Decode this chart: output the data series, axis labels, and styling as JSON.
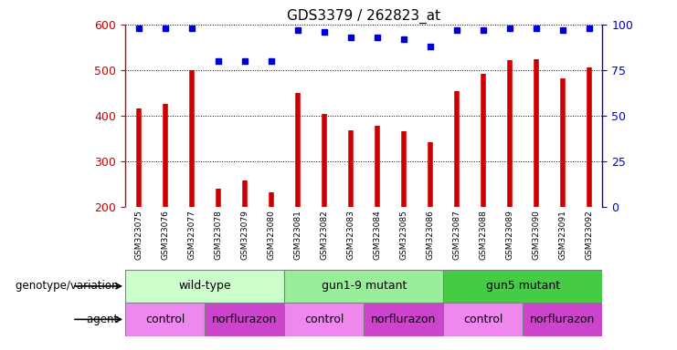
{
  "title": "GDS3379 / 262823_at",
  "samples": [
    "GSM323075",
    "GSM323076",
    "GSM323077",
    "GSM323078",
    "GSM323079",
    "GSM323080",
    "GSM323081",
    "GSM323082",
    "GSM323083",
    "GSM323084",
    "GSM323085",
    "GSM323086",
    "GSM323087",
    "GSM323088",
    "GSM323089",
    "GSM323090",
    "GSM323091",
    "GSM323092"
  ],
  "counts": [
    415,
    425,
    500,
    240,
    258,
    232,
    450,
    403,
    367,
    377,
    366,
    342,
    454,
    492,
    521,
    523,
    482,
    505
  ],
  "percentile_ranks": [
    98,
    98,
    98,
    80,
    80,
    80,
    97,
    96,
    93,
    93,
    92,
    88,
    97,
    97,
    98,
    98,
    97,
    98
  ],
  "bar_color": "#cc0000",
  "dot_color": "#0000cc",
  "ylim_left": [
    200,
    600
  ],
  "ylim_right": [
    0,
    100
  ],
  "yticks_left": [
    200,
    300,
    400,
    500,
    600
  ],
  "yticks_right": [
    0,
    25,
    50,
    75,
    100
  ],
  "genotype_groups": [
    {
      "label": "wild-type",
      "start": 0,
      "end": 6,
      "color": "#ccffcc"
    },
    {
      "label": "gun1-9 mutant",
      "start": 6,
      "end": 12,
      "color": "#99ee99"
    },
    {
      "label": "gun5 mutant",
      "start": 12,
      "end": 18,
      "color": "#44cc44"
    }
  ],
  "agent_groups": [
    {
      "label": "control",
      "start": 0,
      "end": 3,
      "color": "#ee88ee"
    },
    {
      "label": "norflurazon",
      "start": 3,
      "end": 6,
      "color": "#cc44cc"
    },
    {
      "label": "control",
      "start": 6,
      "end": 9,
      "color": "#ee88ee"
    },
    {
      "label": "norflurazon",
      "start": 9,
      "end": 12,
      "color": "#cc44cc"
    },
    {
      "label": "control",
      "start": 12,
      "end": 15,
      "color": "#ee88ee"
    },
    {
      "label": "norflurazon",
      "start": 15,
      "end": 18,
      "color": "#cc44cc"
    }
  ],
  "legend_count_color": "#cc0000",
  "legend_dot_color": "#0000cc",
  "xlabel_genotype": "genotype/variation",
  "xlabel_agent": "agent",
  "background_color": "#ffffff",
  "xticklabel_bg": "#dddddd"
}
